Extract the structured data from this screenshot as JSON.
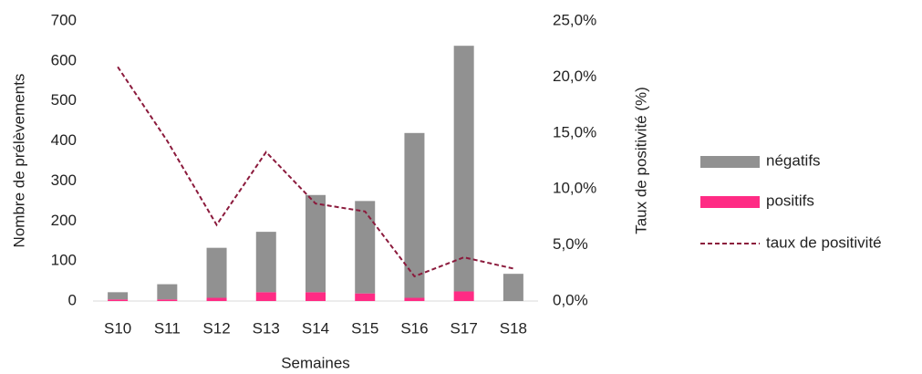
{
  "chart_data": {
    "type": "bar",
    "stacked": true,
    "x_label": "Semaines",
    "y_label": "Nombre de prélèvements",
    "y2_label": "Taux de positivité (%)",
    "categories": [
      "S10",
      "S11",
      "S12",
      "S13",
      "S14",
      "S15",
      "S16",
      "S17",
      "S18"
    ],
    "series": [
      {
        "name": "négatifs",
        "color": "#919191",
        "type": "bar",
        "values": [
          18,
          38,
          125,
          151,
          243,
          231,
          412,
          614,
          68
        ]
      },
      {
        "name": "positifs",
        "color": "#ff2b84",
        "type": "bar",
        "values": [
          4,
          4,
          8,
          22,
          22,
          19,
          8,
          24,
          0
        ]
      },
      {
        "name": "taux de positivité",
        "color": "#8b1a3c",
        "type": "line",
        "dashed": true,
        "axis": "y2",
        "values": [
          20.9,
          14.3,
          6.8,
          13.3,
          8.7,
          8.0,
          2.2,
          3.9,
          2.9
        ]
      }
    ],
    "ylim": [
      0,
      700
    ],
    "yticks": [
      0,
      100,
      200,
      300,
      400,
      500,
      600,
      700
    ],
    "y2lim": [
      0,
      25
    ],
    "y2ticks": [
      {
        "value": 0,
        "label": "0,0%"
      },
      {
        "value": 5,
        "label": "5,0%"
      },
      {
        "value": 10,
        "label": "10,0%"
      },
      {
        "value": 15,
        "label": "15,0%"
      },
      {
        "value": 20,
        "label": "20,0%"
      },
      {
        "value": 25,
        "label": "25,0%"
      }
    ],
    "legend": "right",
    "grid": false
  }
}
